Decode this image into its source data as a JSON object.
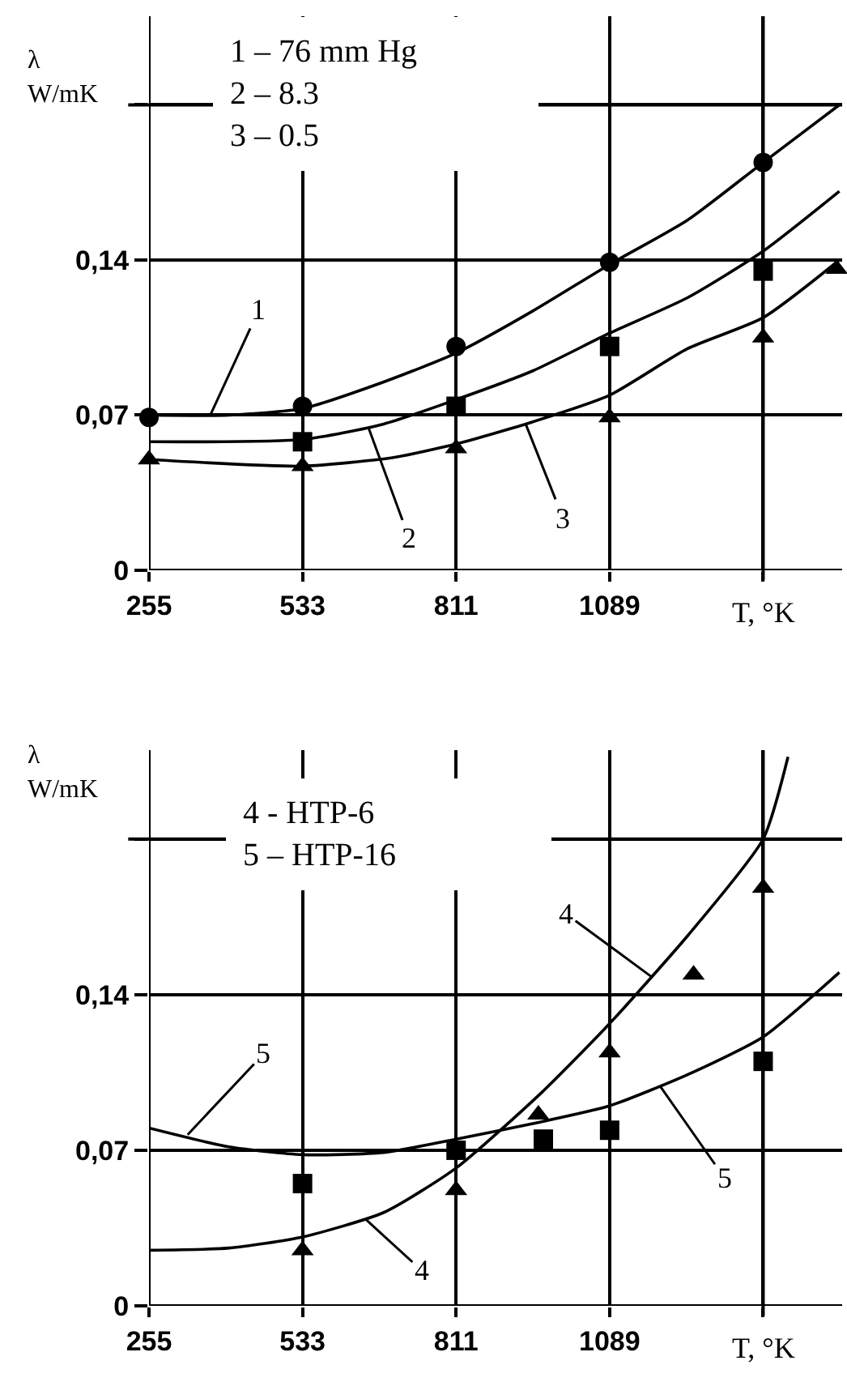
{
  "chart_data": [
    {
      "type": "scatter",
      "ylabel": "λ\nW/mK",
      "xlabel": "T, °K",
      "xlim": [
        255,
        1510
      ],
      "ylim": [
        0,
        0.25
      ],
      "xticks": [
        255,
        533,
        811,
        1089,
        {
          "value": 1367,
          "label": null
        }
      ],
      "yticks": [
        0,
        {
          "value": 0.07,
          "label": "0,07"
        },
        {
          "value": 0.14,
          "label": "0,14"
        },
        {
          "value": 0.21,
          "label": null
        }
      ],
      "grid": true,
      "series": [
        {
          "type": "scatter",
          "marker": "circle",
          "color": "#000000",
          "x": [
            255,
            533,
            811,
            1089,
            1367
          ],
          "values": [
            0.069,
            0.074,
            0.101,
            0.139,
            0.184
          ]
        },
        {
          "type": "scatter",
          "marker": "square",
          "color": "#000000",
          "x": [
            533,
            811,
            1089,
            1367
          ],
          "values": [
            0.058,
            0.074,
            0.101,
            0.135
          ]
        },
        {
          "type": "scatter",
          "marker": "triangle",
          "color": "#000000",
          "x": [
            255,
            533,
            811,
            1089,
            1367,
            1500
          ],
          "values": [
            0.05,
            0.047,
            0.055,
            0.069,
            0.105,
            0.136
          ]
        },
        {
          "type": "line",
          "color": "#000000",
          "x": [
            255,
            400,
            533,
            680,
            811,
            950,
            1089,
            1230,
            1367,
            1505
          ],
          "values": [
            0.07,
            0.07,
            0.073,
            0.085,
            0.098,
            0.117,
            0.138,
            0.158,
            0.184,
            0.21
          ]
        },
        {
          "type": "line",
          "color": "#000000",
          "x": [
            255,
            533,
            680,
            811,
            950,
            1089,
            1230,
            1367,
            1505
          ],
          "values": [
            0.058,
            0.059,
            0.066,
            0.077,
            0.09,
            0.107,
            0.123,
            0.144,
            0.171
          ]
        },
        {
          "type": "line",
          "color": "#000000",
          "x": [
            255,
            533,
            700,
            811,
            950,
            1089,
            1230,
            1367,
            1505
          ],
          "values": [
            0.05,
            0.047,
            0.051,
            0.057,
            0.067,
            0.079,
            0.1,
            0.114,
            0.14
          ]
        }
      ],
      "annotations": [
        "1 – 76 mm Hg",
        "2 – 8.3",
        "3 – 0.5",
        {
          "text": "1",
          "x": 366,
          "y": 0.07
        },
        {
          "text": "2",
          "x": 653,
          "y": 0.064
        },
        {
          "text": "3",
          "x": 937,
          "y": 0.066
        }
      ]
    },
    {
      "type": "scatter",
      "ylabel": "λ\nW/mK",
      "xlabel": "T, °K",
      "xlim": [
        255,
        1510
      ],
      "ylim": [
        0,
        0.25
      ],
      "xticks": [
        255,
        533,
        811,
        1089,
        {
          "value": 1367,
          "label": null
        }
      ],
      "yticks": [
        0,
        {
          "value": 0.07,
          "label": "0,07"
        },
        {
          "value": 0.14,
          "label": "0,14"
        },
        {
          "value": 0.21,
          "label": null
        }
      ],
      "grid": true,
      "series": [
        {
          "type": "scatter",
          "marker": "triangle",
          "color": "#000000",
          "x": [
            533,
            811,
            960,
            1089,
            1241,
            1367
          ],
          "values": [
            0.025,
            0.052,
            0.086,
            0.114,
            0.149,
            0.188
          ]
        },
        {
          "type": "scatter",
          "marker": "square",
          "color": "#000000",
          "x": [
            533,
            811,
            969,
            1089,
            1367
          ],
          "values": [
            0.055,
            0.07,
            0.075,
            0.079,
            0.11
          ]
        },
        {
          "type": "line",
          "color": "#000000",
          "x": [
            255,
            400,
            533,
            680,
            811,
            966,
            1089,
            1232,
            1367,
            1412
          ],
          "values": [
            0.025,
            0.026,
            0.031,
            0.042,
            0.062,
            0.096,
            0.127,
            0.167,
            0.21,
            0.247
          ]
        },
        {
          "type": "line",
          "color": "#000000",
          "x": [
            255,
            400,
            533,
            680,
            811,
            950,
            1089,
            1230,
            1367,
            1505
          ],
          "values": [
            0.08,
            0.0715,
            0.068,
            0.069,
            0.075,
            0.082,
            0.09,
            0.104,
            0.121,
            0.15
          ]
        }
      ],
      "annotations": [
        "4 - HTP-6",
        "5 – HTP-16",
        {
          "text": "4",
          "x": 1165,
          "y": 0.148
        },
        {
          "text": "4",
          "x": 647,
          "y": 0.039
        },
        {
          "text": "5",
          "x": 325,
          "y": 0.077
        },
        {
          "text": "5",
          "x": 1180,
          "y": 0.099
        }
      ]
    }
  ]
}
